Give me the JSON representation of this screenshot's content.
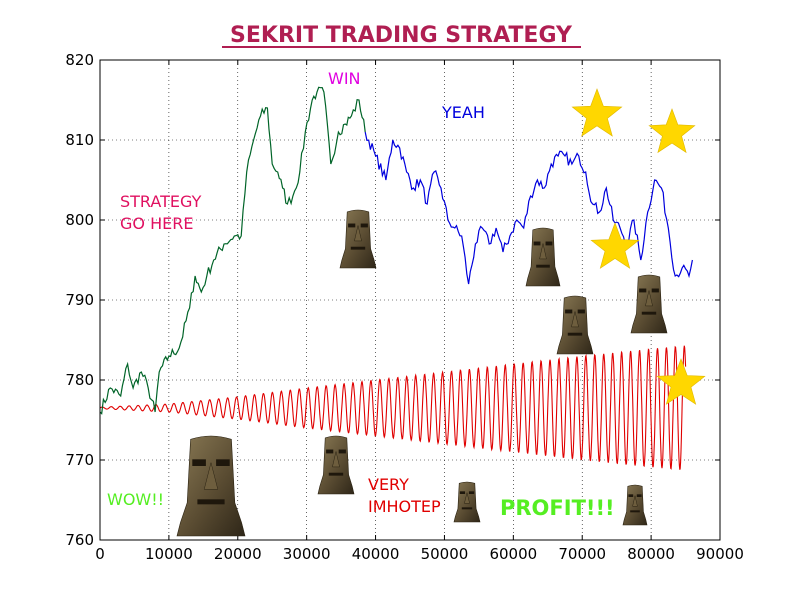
{
  "chart_data": {
    "type": "line",
    "title": "SEKRIT TRADING STRATEGY",
    "xlabel": "",
    "ylabel": "",
    "xlim": [
      0,
      90000
    ],
    "ylim": [
      760,
      820
    ],
    "xticks": [
      0,
      10000,
      20000,
      30000,
      40000,
      50000,
      60000,
      70000,
      80000,
      90000
    ],
    "yticks": [
      760,
      770,
      780,
      790,
      800,
      810,
      820
    ],
    "grid": true,
    "colors": {
      "title": "#b01e52",
      "strategy_series": "#006428",
      "price_series": "#0000dd",
      "oscillation_series": "#e00000",
      "star": "#ffd700"
    },
    "series": [
      {
        "color": "#006428",
        "x": [
          0,
          1500,
          3000,
          4000,
          4800,
          6000,
          7000,
          8000,
          8600,
          10000,
          11500,
          13000,
          13800,
          14700,
          15500,
          16500,
          18000,
          19500,
          20500,
          21300,
          22300,
          23300,
          24300,
          25000,
          25800,
          26500,
          27200,
          28000,
          29000,
          29800,
          30800,
          31500,
          32500,
          33500,
          34600,
          35600,
          36500,
          37600,
          38500
        ],
        "y": [
          776,
          779,
          778,
          782,
          779,
          781,
          779,
          776,
          781,
          783,
          784,
          789,
          793,
          791,
          793,
          795,
          797,
          798,
          798,
          806,
          810,
          813,
          814,
          807,
          806,
          804,
          802,
          803,
          806,
          811,
          815,
          816,
          816,
          807,
          811,
          812,
          813,
          815,
          811
        ]
      },
      {
        "color": "#0000dd",
        "x": [
          38500,
          40000,
          41500,
          42500,
          43500,
          44500,
          45500,
          46500,
          47500,
          48500,
          49500,
          50500,
          51500,
          52500,
          53500,
          54500,
          55500,
          56500,
          57500,
          58500,
          59500,
          60500,
          61500,
          62500,
          63500,
          64500,
          65500,
          66500,
          67500,
          68500,
          69500,
          70500,
          71500,
          72500,
          73500,
          74500,
          75500,
          76500,
          77500,
          78500,
          79500,
          80500,
          81500,
          82500,
          83500,
          84500,
          85500,
          86000
        ],
        "y": [
          811,
          808,
          805,
          810,
          809,
          806,
          804,
          805,
          802,
          806,
          804,
          800,
          799,
          798,
          792,
          797,
          799,
          797,
          799,
          796,
          798,
          800,
          799,
          803,
          805,
          804,
          807,
          808,
          808,
          807,
          808,
          806,
          802,
          801,
          804,
          800,
          799,
          797,
          800,
          795,
          801,
          805,
          804,
          799,
          793,
          794,
          793,
          795
        ]
      }
    ],
    "oscillation": {
      "color": "#e00000",
      "x_start": 0,
      "x_end": 85000,
      "center": 776.5,
      "period": 1300,
      "amplitude_knots": [
        [
          0,
          0.1
        ],
        [
          10000,
          0.5
        ],
        [
          20000,
          1.4
        ],
        [
          30000,
          2.5
        ],
        [
          40000,
          3.5
        ],
        [
          50000,
          4.5
        ],
        [
          60000,
          5.5
        ],
        [
          70000,
          6.5
        ],
        [
          80000,
          7.4
        ],
        [
          85000,
          7.8
        ]
      ]
    },
    "annotations": [
      {
        "text": "WIN",
        "color": "#e000e0"
      },
      {
        "text": "YEAH",
        "color": "#0000dd"
      },
      {
        "text": "STRATEGY",
        "color": "#e01060"
      },
      {
        "text": "GO HERE",
        "color": "#e01060"
      },
      {
        "text": "WOW!!",
        "color": "#55ee22"
      },
      {
        "text": "VERY",
        "color": "#e00000"
      },
      {
        "text": "IMHOTEP",
        "color": "#e00000"
      },
      {
        "text": "PROFIT!!!",
        "color": "#55ee22"
      }
    ],
    "decorations": {
      "stars": 4,
      "moai_heads": 8
    }
  }
}
